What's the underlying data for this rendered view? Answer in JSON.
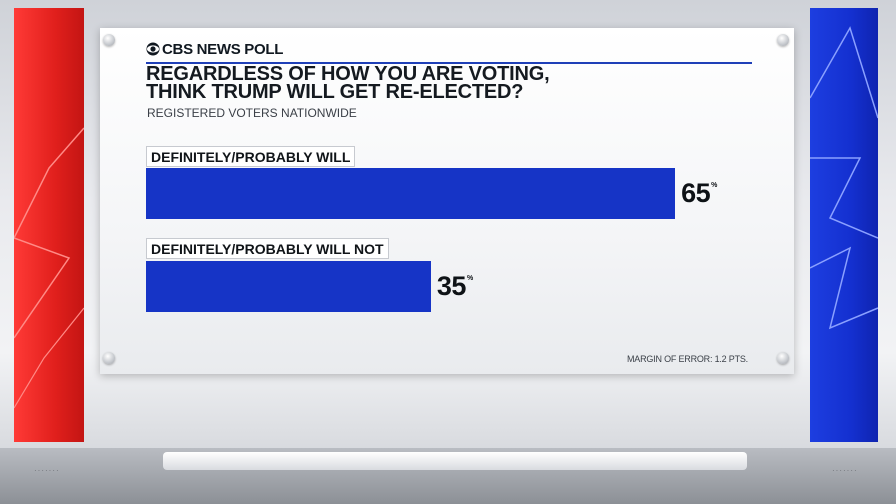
{
  "brand": {
    "logo_icon": "eye-icon",
    "name": "CBS NEWS POLL"
  },
  "chart_data": {
    "type": "bar",
    "orientation": "horizontal",
    "title_line1": "REGARDLESS OF HOW YOU ARE VOTING,",
    "title_line2": "THINK TRUMP WILL GET RE-ELECTED?",
    "subtitle": "REGISTERED VOTERS NATIONWIDE",
    "categories": [
      "DEFINITELY/PROBABLY WILL",
      "DEFINITELY/PROBABLY WILL NOT"
    ],
    "values": [
      65,
      35
    ],
    "value_labels": [
      "65",
      "35"
    ],
    "unit": "%",
    "xlim": [
      0,
      100
    ],
    "bar_color": "#1634c6",
    "grid": false,
    "legend": "none",
    "footnote": "MARGIN OF ERROR: 1.2 PTS."
  },
  "colors": {
    "left_panel": "#e01f1c",
    "right_panel": "#1430d0",
    "accent_rule": "#1f3fb8"
  }
}
